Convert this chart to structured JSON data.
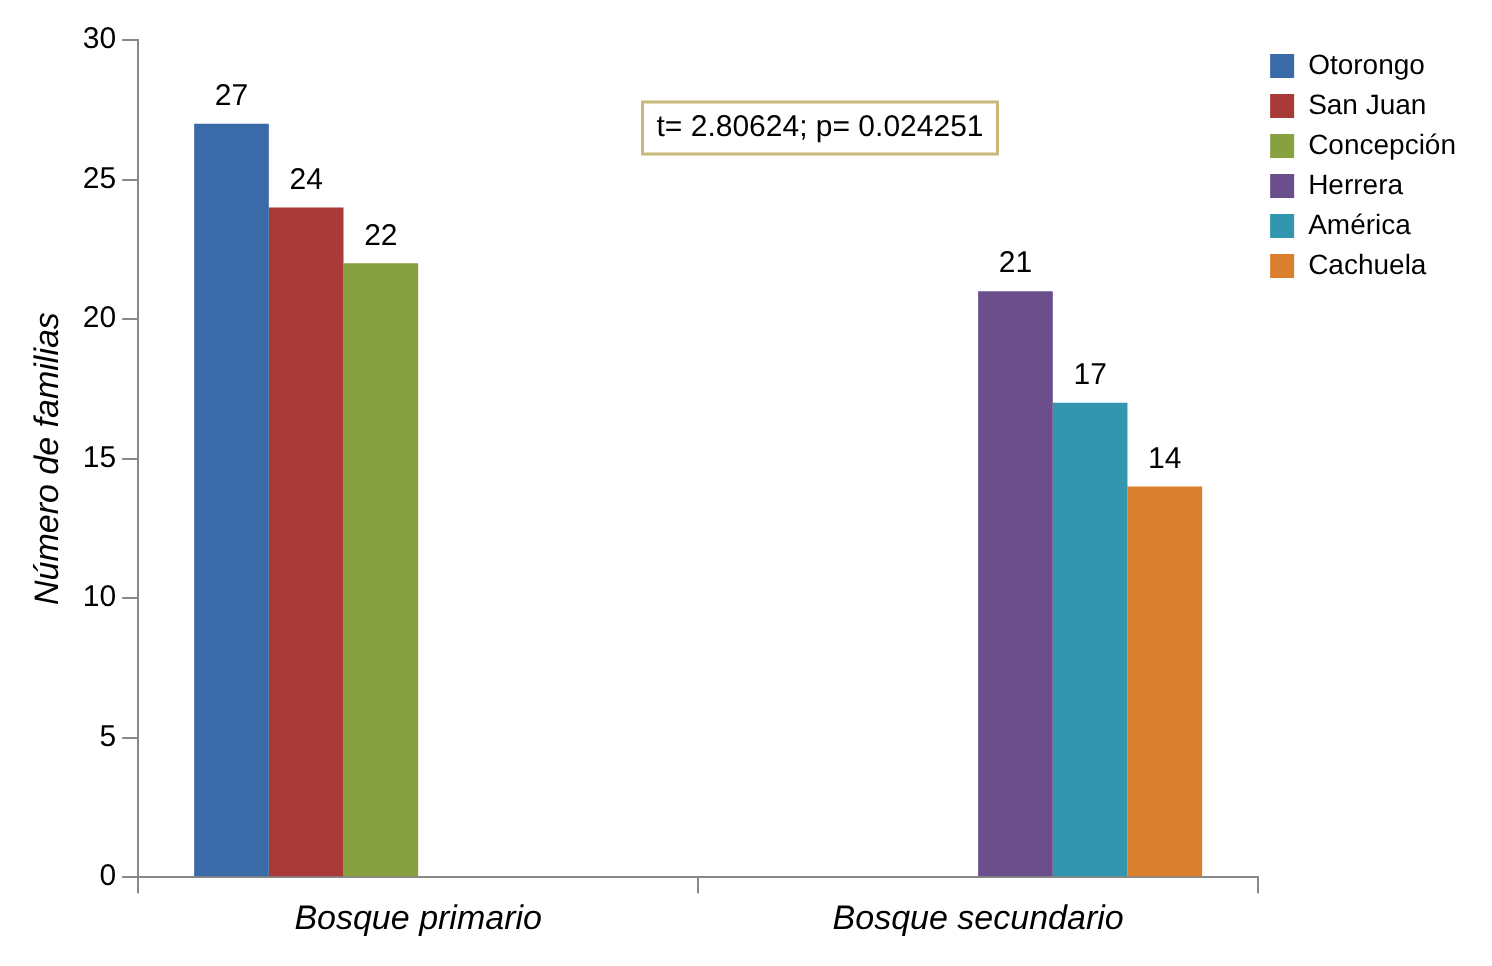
{
  "chart_data": {
    "type": "bar",
    "ylabel": "Número de familias",
    "categories": [
      "Bosque primario",
      "Bosque secundario"
    ],
    "series": [
      {
        "name": "Otorongo",
        "color": "#3a6aa8",
        "values": [
          27,
          null
        ]
      },
      {
        "name": "San Juan",
        "color": "#a83a38",
        "values": [
          24,
          null
        ]
      },
      {
        "name": "Concepción",
        "color": "#87a140",
        "values": [
          22,
          null
        ]
      },
      {
        "name": "Herrera",
        "color": "#6b4f8c",
        "values": [
          null,
          21
        ]
      },
      {
        "name": "América",
        "color": "#3396ae",
        "values": [
          null,
          17
        ]
      },
      {
        "name": "Cachuela",
        "color": "#d97f2e",
        "values": [
          null,
          14
        ]
      }
    ],
    "ylim": [
      0,
      30
    ],
    "yticks": [
      0,
      5,
      10,
      15,
      20,
      25,
      30
    ],
    "grid": false,
    "legend": "top right",
    "data_labels": true,
    "annotations": [
      "t= 2.80624; p= 0.024251"
    ]
  }
}
